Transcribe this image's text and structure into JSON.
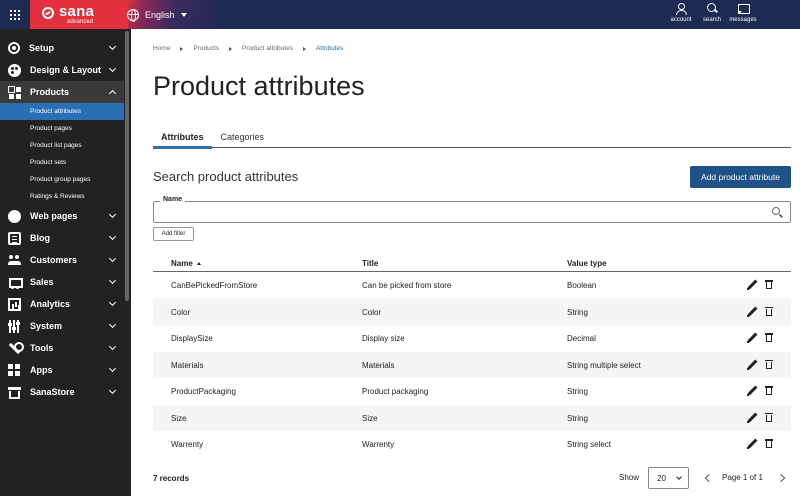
{
  "topbar": {
    "logo_word": "sana",
    "logo_sub": "advanced",
    "language": "English",
    "actions": [
      {
        "label": "account",
        "icon": "account-icon"
      },
      {
        "label": "search",
        "icon": "search-icon"
      },
      {
        "label": "messages",
        "icon": "messages-icon"
      }
    ]
  },
  "sidebar": {
    "items": [
      {
        "label": "Setup",
        "icon": "gear-icon"
      },
      {
        "label": "Design & Layout",
        "icon": "palette-icon"
      },
      {
        "label": "Products",
        "icon": "grid-icon"
      },
      {
        "label": "Web pages",
        "icon": "globe-icon"
      },
      {
        "label": "Blog",
        "icon": "blog-icon"
      },
      {
        "label": "Customers",
        "icon": "people-icon"
      },
      {
        "label": "Sales",
        "icon": "cart-icon"
      },
      {
        "label": "Analytics",
        "icon": "chart-icon"
      },
      {
        "label": "System",
        "icon": "system-icon"
      },
      {
        "label": "Tools",
        "icon": "wrench-icon"
      },
      {
        "label": "Apps",
        "icon": "apps-icon"
      },
      {
        "label": "SanaStore",
        "icon": "store-icon"
      }
    ],
    "products_sub": [
      "Product attributes",
      "Product pages",
      "Product list pages",
      "Product sets",
      "Product group pages",
      "Ratings & Reviews"
    ]
  },
  "breadcrumb": [
    "Home",
    "Products",
    "Product attributes",
    "Attributes"
  ],
  "page": {
    "title": "Product attributes",
    "tabs": [
      "Attributes",
      "Categories"
    ],
    "search_heading": "Search product attributes",
    "add_button": "Add product attribute",
    "name_label": "Name",
    "name_value": "",
    "add_filter": "Add filter"
  },
  "grid": {
    "columns": [
      "Name",
      "Title",
      "Value type"
    ],
    "rows": [
      {
        "name": "CanBePickedFromStore",
        "title": "Can be picked from store",
        "type": "Boolean"
      },
      {
        "name": "Color",
        "title": "Color",
        "type": "String"
      },
      {
        "name": "DisplaySize",
        "title": "Display size",
        "type": "Decimal"
      },
      {
        "name": "Materials",
        "title": "Materials",
        "type": "String multiple select"
      },
      {
        "name": "ProductPackaging",
        "title": "Product packaging",
        "type": "String"
      },
      {
        "name": "Size",
        "title": "Size",
        "type": "String"
      },
      {
        "name": "Warrenty",
        "title": "Warrenty",
        "type": "String select"
      }
    ]
  },
  "footer": {
    "records": "7 records",
    "show_label": "Show",
    "page_size": "20",
    "page_info": "Page 1 of 1"
  },
  "colors": {
    "topbar": "#1d2a52",
    "logo": "#e2303d",
    "sidebar": "#222222",
    "active_sub": "#2a6fb3",
    "primary_button": "#1e5288"
  }
}
